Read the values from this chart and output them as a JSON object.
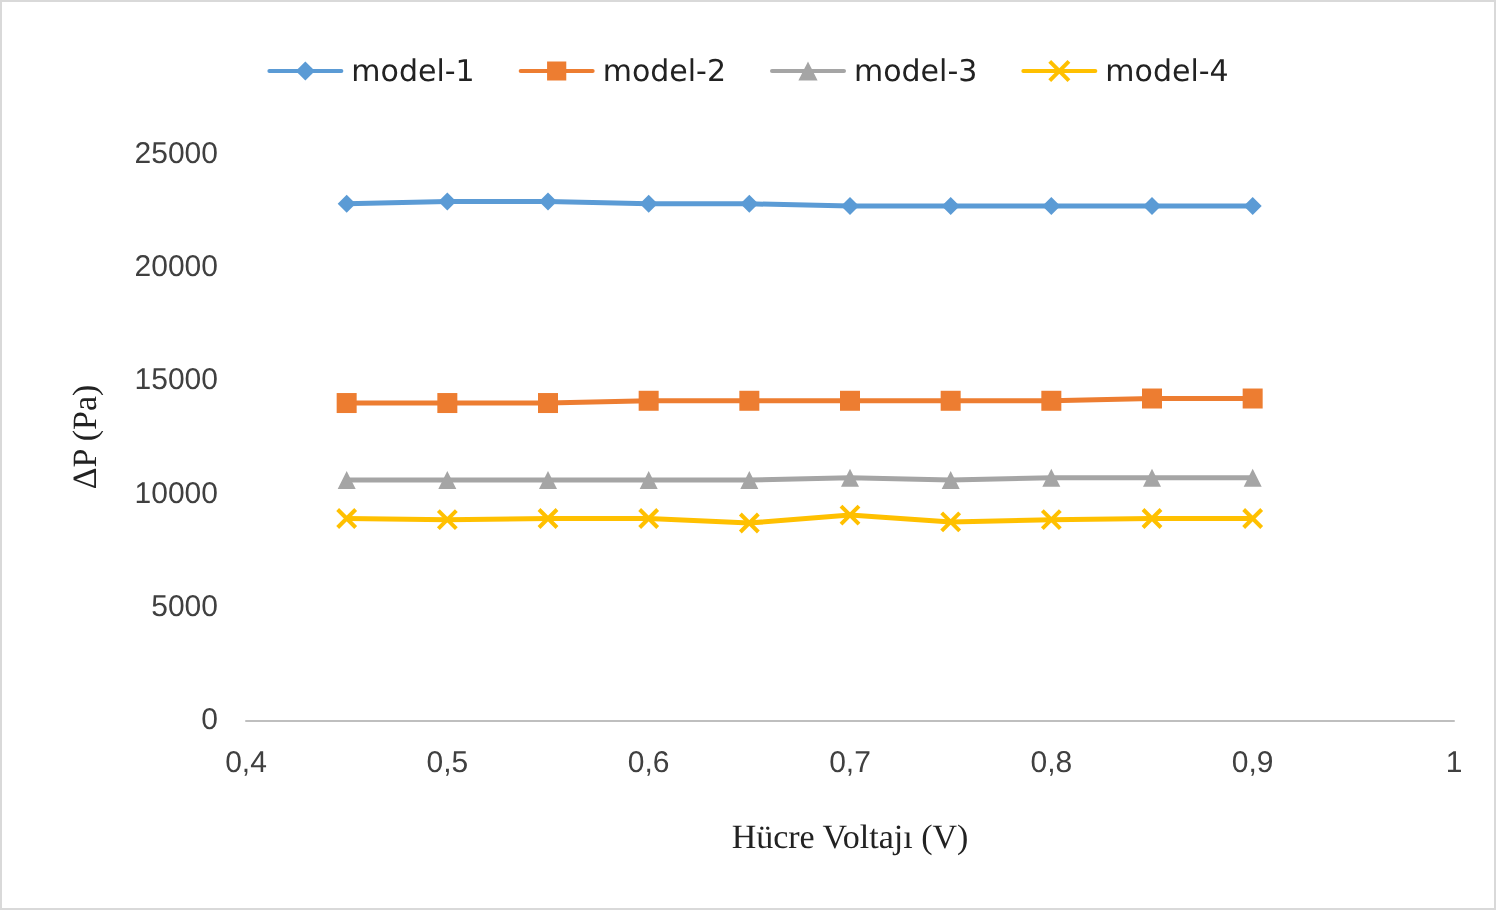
{
  "chart_data": {
    "type": "line",
    "xlabel": "Hücre Voltajı (V)",
    "ylabel": "ΔP (Pa)",
    "x": [
      0.45,
      0.5,
      0.55,
      0.6,
      0.65,
      0.7,
      0.75,
      0.8,
      0.85,
      0.9
    ],
    "series": [
      {
        "name": "model-1",
        "color": "#5b9bd5",
        "marker": "diamond",
        "values": [
          22800,
          22900,
          22900,
          22800,
          22800,
          22700,
          22700,
          22700,
          22700,
          22700
        ]
      },
      {
        "name": "model-2",
        "color": "#ed7d31",
        "marker": "square",
        "values": [
          14000,
          14000,
          14000,
          14100,
          14100,
          14100,
          14100,
          14100,
          14200,
          14200
        ]
      },
      {
        "name": "model-3",
        "color": "#a5a5a5",
        "marker": "triangle",
        "values": [
          10600,
          10600,
          10600,
          10600,
          10600,
          10700,
          10600,
          10700,
          10700,
          10700
        ]
      },
      {
        "name": "model-4",
        "color": "#ffc000",
        "marker": "cross",
        "values": [
          8900,
          8850,
          8900,
          8900,
          8700,
          9050,
          8750,
          8850,
          8900,
          8900
        ]
      }
    ],
    "xlim": [
      0.4,
      1
    ],
    "xticks": [
      {
        "value": 0.4,
        "label": "0,4"
      },
      {
        "value": 0.5,
        "label": "0,5"
      },
      {
        "value": 0.6,
        "label": "0,6"
      },
      {
        "value": 0.7,
        "label": "0,7"
      },
      {
        "value": 0.8,
        "label": "0,8"
      },
      {
        "value": 0.9,
        "label": "0,9"
      },
      {
        "value": 1,
        "label": "1"
      }
    ],
    "ylim": [
      0,
      25000
    ],
    "yticks": [
      0,
      5000,
      10000,
      15000,
      20000,
      25000
    ],
    "grid": false,
    "legend": "top",
    "line_style": "solid"
  }
}
